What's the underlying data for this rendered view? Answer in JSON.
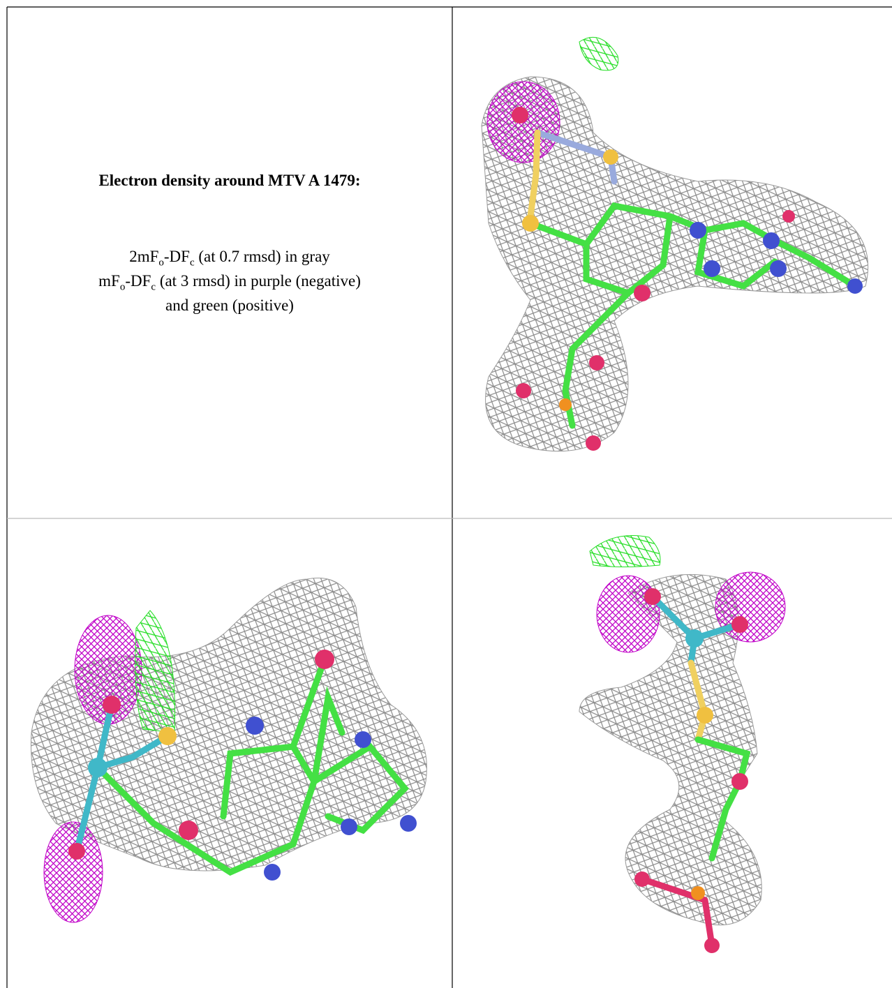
{
  "caption": {
    "title": "Electron density around MTV A 1479:",
    "lines": [
      [
        "2mF",
        "o",
        "-DF",
        "c",
        " (at 0.7 rmsd) in gray"
      ],
      [
        "mF",
        "o",
        "-DF",
        "c",
        " (at 3 rmsd) in purple (negative)"
      ],
      [
        "and green (positive)"
      ]
    ]
  }
}
